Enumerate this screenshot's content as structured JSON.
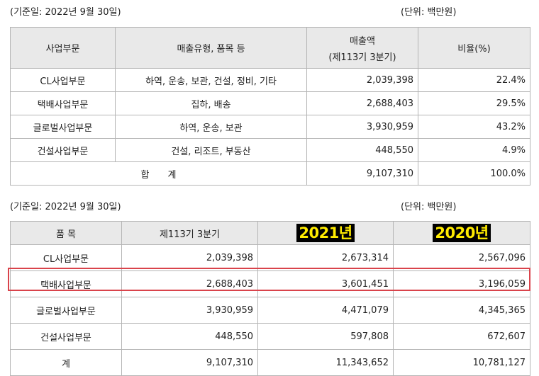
{
  "table1": {
    "date_note": "(기준일: 2022년 9월 30일)",
    "unit_note": "(단위: 백만원)",
    "headers": {
      "division": "사업부문",
      "sales_type": "매출유형, 품목 등",
      "sales_line1": "매출액",
      "sales_line2": "(제113기 3분기)",
      "ratio": "비율(%)"
    },
    "rows": [
      {
        "division": "CL사업부문",
        "type": "하역, 운송, 보관, 건설, 정비, 기타",
        "sales": "2,039,398",
        "ratio": "22.4%"
      },
      {
        "division": "택배사업부문",
        "type": "집하, 배송",
        "sales": "2,688,403",
        "ratio": "29.5%"
      },
      {
        "division": "글로벌사업부문",
        "type": "하역, 운송, 보관",
        "sales": "3,930,959",
        "ratio": "43.2%"
      },
      {
        "division": "건설사업부문",
        "type": "건설, 리조트, 부동산",
        "sales": "448,550",
        "ratio": "4.9%"
      }
    ],
    "total": {
      "label": "합　　계",
      "sales": "9,107,310",
      "ratio": "100.0%"
    }
  },
  "table2": {
    "date_note": "(기준일: 2022년 9월 30일)",
    "unit_note": "(단위: 백만원)",
    "headers": {
      "item": "품 목",
      "q3": "제113기 3분기",
      "y2021": "2021년",
      "y2020": "2020년"
    },
    "rows": [
      {
        "item": "CL사업부문",
        "q3": "2,039,398",
        "y2021": "2,673,314",
        "y2020": "2,567,096"
      },
      {
        "item": "택배사업부문",
        "q3": "2,688,403",
        "y2021": "3,601,451",
        "y2020": "3,196,059"
      },
      {
        "item": "글로벌사업부문",
        "q3": "3,930,959",
        "y2021": "4,471,079",
        "y2020": "4,345,365"
      },
      {
        "item": "건설사업부문",
        "q3": "448,550",
        "y2021": "597,808",
        "y2020": "672,607"
      },
      {
        "item": "계",
        "q3": "9,107,310",
        "y2021": "11,343,652",
        "y2020": "10,781,127"
      }
    ]
  },
  "colors": {
    "highlight": "#d9434b",
    "year_badge_bg": "#000000",
    "year_badge_text": "#ffeb00",
    "header_bg": "#e9e9e9"
  }
}
